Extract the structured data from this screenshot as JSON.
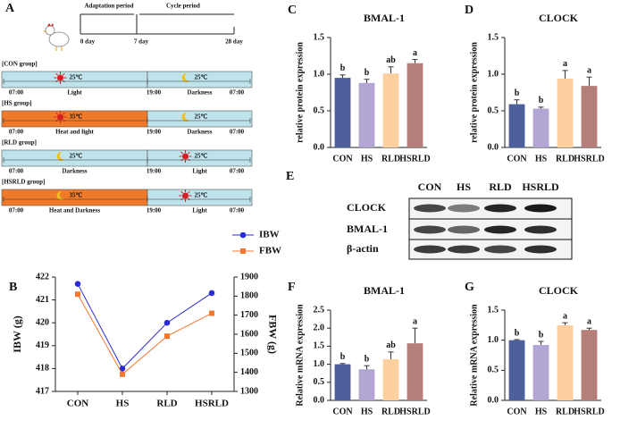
{
  "diagram": {
    "label": "A",
    "timeline": {
      "periods": [
        "Adaptation period",
        "Cycle period"
      ],
      "days": [
        "0 day",
        "7 day",
        "28 day"
      ]
    },
    "groups": [
      {
        "name": "[CON group]",
        "times": [
          "07:00",
          "19:00",
          "07:00"
        ],
        "segments": [
          {
            "temp": "25℃",
            "label": "Light",
            "icon": "sun",
            "color": "#bfe3ec"
          },
          {
            "temp": "25℃",
            "label": "Darkness",
            "icon": "moon",
            "color": "#bfe3ec"
          }
        ]
      },
      {
        "name": "[HS group]",
        "times": [
          "07:00",
          "19:00",
          "07:00"
        ],
        "segments": [
          {
            "temp": "35℃",
            "label": "Heat and light",
            "icon": "sun",
            "color": "#f07a2a"
          },
          {
            "temp": "25℃",
            "label": "Darkness",
            "icon": "moon",
            "color": "#bfe3ec"
          }
        ]
      },
      {
        "name": "[RLD group]",
        "times": [
          "07:00",
          "19:00",
          "07:00"
        ],
        "segments": [
          {
            "temp": "25℃",
            "label": "Darkness",
            "icon": "moon",
            "color": "#bfe3ec"
          },
          {
            "temp": "25℃",
            "label": "Light",
            "icon": "sun",
            "color": "#bfe3ec"
          }
        ]
      },
      {
        "name": "[HSRLD group]",
        "times": [
          "07:00",
          "19:00",
          "07:00"
        ],
        "segments": [
          {
            "temp": "35℃",
            "label": "Heat and Darkness",
            "icon": "moon",
            "color": "#f07a2a"
          },
          {
            "temp": "25℃",
            "label": "Light",
            "icon": "sun",
            "color": "#bfe3ec"
          }
        ]
      }
    ]
  },
  "blot": {
    "label": "E",
    "columns": [
      "CON",
      "HS",
      "RLD",
      "HSRLD"
    ],
    "rows": [
      "CLOCK",
      "BMAL-1",
      "β-actin"
    ]
  },
  "chart_data": [
    {
      "type": "line",
      "label": "B",
      "ylabel": "IBW (g)",
      "y2label": "FBW (g)",
      "categories": [
        "CON",
        "HS",
        "RLD",
        "HSRLD"
      ],
      "series": [
        {
          "name": "IBW",
          "color": "#2a2ad8",
          "marker": "circle",
          "values": [
            421.7,
            418.0,
            420.0,
            421.3
          ]
        },
        {
          "name": "FBW",
          "color": "#f07830",
          "marker": "square",
          "axis": "y2",
          "values": [
            1810,
            1390,
            1590,
            1710
          ]
        }
      ],
      "ylim": [
        417,
        422
      ],
      "yticks": [
        417,
        418,
        419,
        420,
        421,
        422
      ],
      "y2lim": [
        1300,
        1900
      ],
      "y2ticks": [
        1300,
        1400,
        1500,
        1600,
        1700,
        1800,
        1900
      ]
    },
    {
      "type": "bar",
      "label": "C",
      "title": "BMAL-1",
      "ylabel": "relative protein expression",
      "categories": [
        "CON",
        "HS",
        "RLD",
        "HSRLD"
      ],
      "values": [
        0.95,
        0.88,
        1.01,
        1.15
      ],
      "errors": [
        0.04,
        0.05,
        0.09,
        0.05
      ],
      "annotations": [
        "b",
        "b",
        "ab",
        "a"
      ],
      "colors": [
        "#4e5f9e",
        "#b3a6d4",
        "#fdd0a0",
        "#b57e78"
      ],
      "ylim": [
        0,
        1.5
      ],
      "yticks": [
        {
          "value": 0,
          "label": "0.0"
        },
        0.5,
        {
          "value": 1,
          "label": "1.0"
        },
        1.5
      ]
    },
    {
      "type": "bar",
      "label": "D",
      "title": "CLOCK",
      "ylabel": "relative protein expression",
      "categories": [
        "CON",
        "HS",
        "RLD",
        "HSRLD"
      ],
      "values": [
        0.59,
        0.53,
        0.94,
        0.84
      ],
      "errors": [
        0.06,
        0.02,
        0.11,
        0.12
      ],
      "annotations": [
        "b",
        "b",
        "a",
        "a"
      ],
      "colors": [
        "#4e5f9e",
        "#b3a6d4",
        "#fdd0a0",
        "#b57e78"
      ],
      "ylim": [
        0,
        1.5
      ],
      "yticks": [
        {
          "value": 0,
          "label": "0.0"
        },
        0.5,
        {
          "value": 1,
          "label": "1.0"
        },
        1.5
      ]
    },
    {
      "type": "bar",
      "label": "F",
      "title": "BMAL-1",
      "ylabel": "Relative mRNA expression",
      "categories": [
        "CON",
        "HS",
        "RLD",
        "HSRLD"
      ],
      "values": [
        1.0,
        0.86,
        1.14,
        1.58
      ],
      "errors": [
        0.02,
        0.1,
        0.2,
        0.42
      ],
      "annotations": [
        "b",
        "b",
        "ab",
        "a"
      ],
      "colors": [
        "#4e5f9e",
        "#b3a6d4",
        "#fdd0a0",
        "#b57e78"
      ],
      "ylim": [
        0,
        2.5
      ],
      "yticks": [
        {
          "value": 0,
          "label": "0.0"
        },
        0.5,
        {
          "value": 1,
          "label": "1.0"
        },
        1.5,
        {
          "value": 2,
          "label": "2.0"
        },
        2.5
      ]
    },
    {
      "type": "bar",
      "label": "G",
      "title": "CLOCK",
      "ylabel": "Relative mRNA expression",
      "categories": [
        "CON",
        "HS",
        "RLD",
        "HSRLD"
      ],
      "values": [
        1.0,
        0.92,
        1.25,
        1.17
      ],
      "errors": [
        0.01,
        0.06,
        0.04,
        0.03
      ],
      "annotations": [
        "b",
        "b",
        "a",
        "a"
      ],
      "colors": [
        "#4e5f9e",
        "#b3a6d4",
        "#fdd0a0",
        "#b57e78"
      ],
      "ylim": [
        0,
        1.5
      ],
      "yticks": [
        {
          "value": 0,
          "label": "0.0"
        },
        0.5,
        {
          "value": 1,
          "label": "1.0"
        },
        1.5
      ]
    }
  ]
}
